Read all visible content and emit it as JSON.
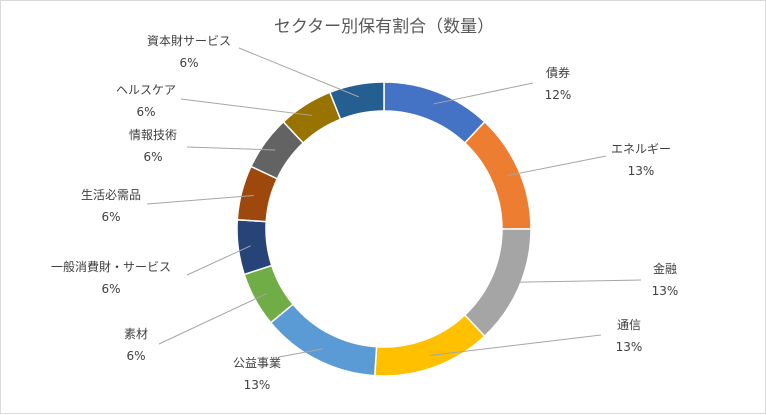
{
  "chart_data": {
    "type": "pie",
    "style": "doughnut",
    "title": "セクター別保有割合（数量）",
    "legend": "none",
    "slices": [
      {
        "label": "債券",
        "value": 12,
        "pct_label": "12%",
        "color": "#4472C4"
      },
      {
        "label": "エネルギー",
        "value": 13,
        "pct_label": "13%",
        "color": "#ED7D31"
      },
      {
        "label": "金融",
        "value": 13,
        "pct_label": "13%",
        "color": "#A5A5A5"
      },
      {
        "label": "通信",
        "value": 13,
        "pct_label": "13%",
        "color": "#FFC000"
      },
      {
        "label": "公益事業",
        "value": 13,
        "pct_label": "13%",
        "color": "#5B9BD5"
      },
      {
        "label": "素材",
        "value": 6,
        "pct_label": "6%",
        "color": "#70AD47"
      },
      {
        "label": "一般消費財・サービス",
        "value": 6,
        "pct_label": "6%",
        "color": "#264478"
      },
      {
        "label": "生活必需品",
        "value": 6,
        "pct_label": "6%",
        "color": "#9E480E"
      },
      {
        "label": "情報技術",
        "value": 6,
        "pct_label": "6%",
        "color": "#636363"
      },
      {
        "label": "ヘルスケア",
        "value": 6,
        "pct_label": "6%",
        "color": "#997300"
      },
      {
        "label": "資本財サービス",
        "value": 6,
        "pct_label": "6%",
        "color": "#255E91"
      }
    ]
  }
}
